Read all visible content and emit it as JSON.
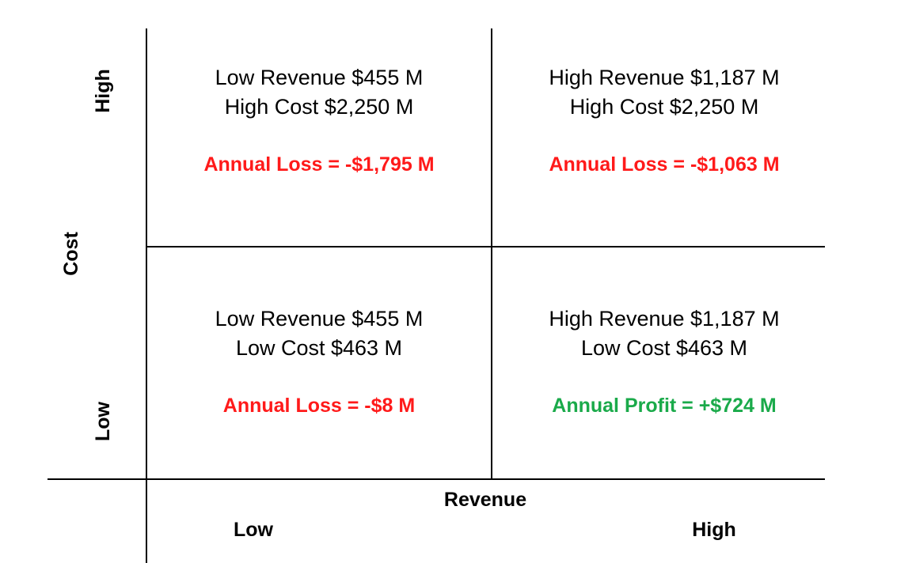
{
  "axes": {
    "y_title": "Cost",
    "y_high": "High",
    "y_low": "Low",
    "x_title": "Revenue",
    "x_low": "Low",
    "x_high": "High"
  },
  "quadrants": {
    "top_left": {
      "revenue": "Low Revenue $455 M",
      "cost": "High Cost $2,250 M",
      "result": "Annual Loss = -$1,795 M",
      "result_color": "#ff1a1a"
    },
    "top_right": {
      "revenue": "High Revenue $1,187 M",
      "cost": "High Cost $2,250 M",
      "result": "Annual Loss = -$1,063 M",
      "result_color": "#ff1a1a"
    },
    "bottom_left": {
      "revenue": "Low Revenue $455 M",
      "cost": "Low Cost $463 M",
      "result": "Annual Loss = -$8 M",
      "result_color": "#ff1a1a"
    },
    "bottom_right": {
      "revenue": "High Revenue $1,187 M",
      "cost": "Low Cost $463 M",
      "result": "Annual Profit = +$724 M",
      "result_color": "#1aaa4a"
    }
  }
}
